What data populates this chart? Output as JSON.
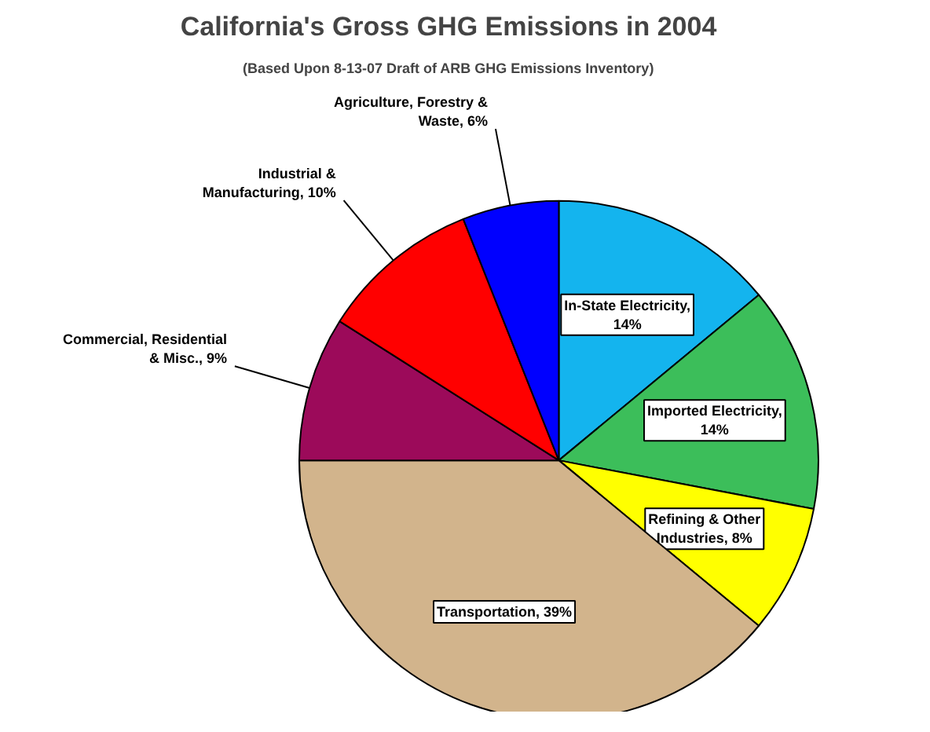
{
  "chart_data": {
    "type": "pie",
    "title": "California's Gross GHG Emissions in 2004",
    "subtitle": "(Based Upon 8-13-07 Draft of ARB GHG Emissions Inventory)",
    "categories": [
      "In-State Electricity, 14%",
      "Imported Electricity, 14%",
      "Refining & Other Industries, 8%",
      "Transportation, 39%",
      "Commercial, Residential & Misc., 9%",
      "Industrial & Manufacturing, 10%",
      "Agriculture, Forestry & Waste, 6%"
    ],
    "values": [
      14,
      14,
      8,
      39,
      9,
      10,
      6
    ],
    "colors": [
      "#14b4ee",
      "#3cbe5a",
      "#ffff00",
      "#d2b48c",
      "#9c0a5a",
      "#ff0000",
      "#0000ff"
    ]
  }
}
